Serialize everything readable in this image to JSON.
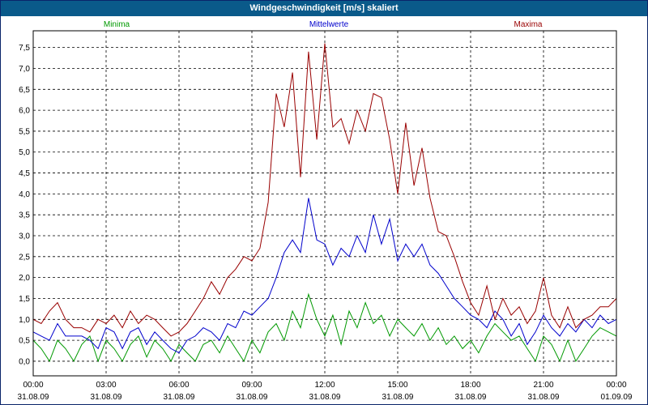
{
  "window": {
    "title": "Windgeschwindigkeit [m/s] skaliert"
  },
  "chart_data": {
    "type": "line",
    "title": "Windgeschwindigkeit [m/s] skaliert",
    "xlabel": "",
    "ylabel": "",
    "ylim": [
      -0.35,
      7.9
    ],
    "xlim": [
      0,
      24
    ],
    "grid": true,
    "y_ticks": [
      "0,0",
      "0,5",
      "1,0",
      "1,5",
      "2,0",
      "2,5",
      "3,0",
      "3,5",
      "4,0",
      "4,5",
      "5,0",
      "5,5",
      "6,0",
      "6,5",
      "7,0",
      "7,5"
    ],
    "x_ticks": [
      {
        "time": "00:00",
        "date": "31.08.09"
      },
      {
        "time": "03:00",
        "date": "31.08.09"
      },
      {
        "time": "06:00",
        "date": "31.08.09"
      },
      {
        "time": "09:00",
        "date": "31.08.09"
      },
      {
        "time": "12:00",
        "date": "31.08.09"
      },
      {
        "time": "15:00",
        "date": "31.08.09"
      },
      {
        "time": "18:00",
        "date": "31.08.09"
      },
      {
        "time": "21:00",
        "date": "31.08.09"
      },
      {
        "time": "00:00",
        "date": "01.09.09"
      }
    ],
    "legend": [
      "Minima",
      "Mittelwerte",
      "Maxima"
    ],
    "series": [
      {
        "name": "Minima",
        "color": "#009900",
        "x": [
          0,
          0.33,
          0.67,
          1,
          1.33,
          1.67,
          2,
          2.33,
          2.67,
          3,
          3.33,
          3.67,
          4,
          4.33,
          4.67,
          5,
          5.33,
          5.67,
          6,
          6.33,
          6.67,
          7,
          7.33,
          7.67,
          8,
          8.33,
          8.67,
          9,
          9.33,
          9.67,
          10,
          10.33,
          10.67,
          11,
          11.33,
          11.67,
          12,
          12.33,
          12.67,
          13,
          13.33,
          13.67,
          14,
          14.33,
          14.67,
          15,
          15.33,
          15.67,
          16,
          16.33,
          16.67,
          17,
          17.33,
          17.67,
          18,
          18.33,
          18.67,
          19,
          19.33,
          19.67,
          20,
          20.33,
          20.67,
          21,
          21.33,
          21.67,
          22,
          22.33,
          22.67,
          23,
          23.33,
          23.67,
          24
        ],
        "values": [
          0.5,
          0.3,
          0.0,
          0.5,
          0.3,
          0.0,
          0.4,
          0.6,
          0.0,
          0.5,
          0.3,
          0.0,
          0.4,
          0.6,
          0.1,
          0.5,
          0.3,
          0.0,
          0.4,
          0.2,
          0.0,
          0.4,
          0.5,
          0.2,
          0.6,
          0.3,
          0.0,
          0.5,
          0.2,
          0.7,
          0.9,
          0.5,
          1.2,
          0.8,
          1.6,
          1.0,
          0.6,
          1.1,
          0.4,
          1.2,
          0.8,
          1.4,
          0.9,
          1.1,
          0.6,
          1.0,
          0.8,
          0.6,
          0.9,
          0.5,
          0.8,
          0.4,
          0.6,
          0.3,
          0.5,
          0.2,
          0.6,
          0.9,
          0.7,
          0.5,
          0.6,
          0.3,
          0.0,
          0.6,
          0.4,
          0.0,
          0.5,
          0.0,
          0.3,
          0.6,
          0.8,
          0.7,
          0.6
        ]
      },
      {
        "name": "Mittelwerte",
        "color": "#0000cc",
        "x": [
          0,
          0.33,
          0.67,
          1,
          1.33,
          1.67,
          2,
          2.33,
          2.67,
          3,
          3.33,
          3.67,
          4,
          4.33,
          4.67,
          5,
          5.33,
          5.67,
          6,
          6.33,
          6.67,
          7,
          7.33,
          7.67,
          8,
          8.33,
          8.67,
          9,
          9.33,
          9.67,
          10,
          10.33,
          10.67,
          11,
          11.33,
          11.67,
          12,
          12.33,
          12.67,
          13,
          13.33,
          13.67,
          14,
          14.33,
          14.67,
          15,
          15.33,
          15.67,
          16,
          16.33,
          16.67,
          17,
          17.33,
          17.67,
          18,
          18.33,
          18.67,
          19,
          19.33,
          19.67,
          20,
          20.33,
          20.67,
          21,
          21.33,
          21.67,
          22,
          22.33,
          22.67,
          23,
          23.33,
          23.67,
          24
        ],
        "values": [
          0.7,
          0.6,
          0.5,
          0.9,
          0.6,
          0.6,
          0.6,
          0.5,
          0.3,
          0.8,
          0.7,
          0.3,
          0.7,
          0.8,
          0.4,
          0.7,
          0.5,
          0.3,
          0.2,
          0.5,
          0.6,
          0.8,
          0.7,
          0.5,
          0.9,
          0.8,
          1.2,
          1.1,
          1.3,
          1.5,
          2.0,
          2.6,
          2.9,
          2.6,
          3.9,
          2.9,
          2.8,
          2.3,
          2.7,
          2.5,
          3.0,
          2.6,
          3.5,
          2.8,
          3.4,
          2.4,
          2.8,
          2.5,
          2.8,
          2.3,
          2.1,
          1.8,
          1.5,
          1.3,
          1.1,
          1.0,
          0.8,
          1.2,
          1.0,
          0.6,
          0.9,
          0.4,
          0.7,
          1.1,
          0.8,
          0.6,
          0.9,
          0.7,
          1.0,
          0.8,
          1.1,
          0.9,
          1.0
        ]
      },
      {
        "name": "Maxima",
        "color": "#990000",
        "x": [
          0,
          0.33,
          0.67,
          1,
          1.33,
          1.67,
          2,
          2.33,
          2.67,
          3,
          3.33,
          3.67,
          4,
          4.33,
          4.67,
          5,
          5.33,
          5.67,
          6,
          6.33,
          6.67,
          7,
          7.33,
          7.67,
          8,
          8.33,
          8.67,
          9,
          9.33,
          9.67,
          10,
          10.33,
          10.67,
          11,
          11.33,
          11.67,
          12,
          12.33,
          12.67,
          13,
          13.33,
          13.67,
          14,
          14.33,
          14.67,
          15,
          15.33,
          15.67,
          16,
          16.33,
          16.67,
          17,
          17.33,
          17.67,
          18,
          18.33,
          18.67,
          19,
          19.33,
          19.67,
          20,
          20.33,
          20.67,
          21,
          21.33,
          21.67,
          22,
          22.33,
          22.67,
          23,
          23.33,
          23.67,
          24
        ],
        "values": [
          1.0,
          0.9,
          1.2,
          1.4,
          1.0,
          0.8,
          0.8,
          0.7,
          1.0,
          0.9,
          1.1,
          0.8,
          1.2,
          0.9,
          1.1,
          1.0,
          0.8,
          0.6,
          0.7,
          0.9,
          1.2,
          1.5,
          1.9,
          1.6,
          2.0,
          2.2,
          2.5,
          2.4,
          2.7,
          3.8,
          6.4,
          5.6,
          6.9,
          4.4,
          7.4,
          5.3,
          7.6,
          5.6,
          5.8,
          5.2,
          6.0,
          5.5,
          6.4,
          6.3,
          5.3,
          4.0,
          5.7,
          4.2,
          5.1,
          3.9,
          3.1,
          3.0,
          2.5,
          1.9,
          1.4,
          1.1,
          1.8,
          1.0,
          1.5,
          1.1,
          1.3,
          0.9,
          1.2,
          2.0,
          1.1,
          0.8,
          1.3,
          0.8,
          1.0,
          1.1,
          1.3,
          1.3,
          1.5
        ]
      }
    ]
  }
}
